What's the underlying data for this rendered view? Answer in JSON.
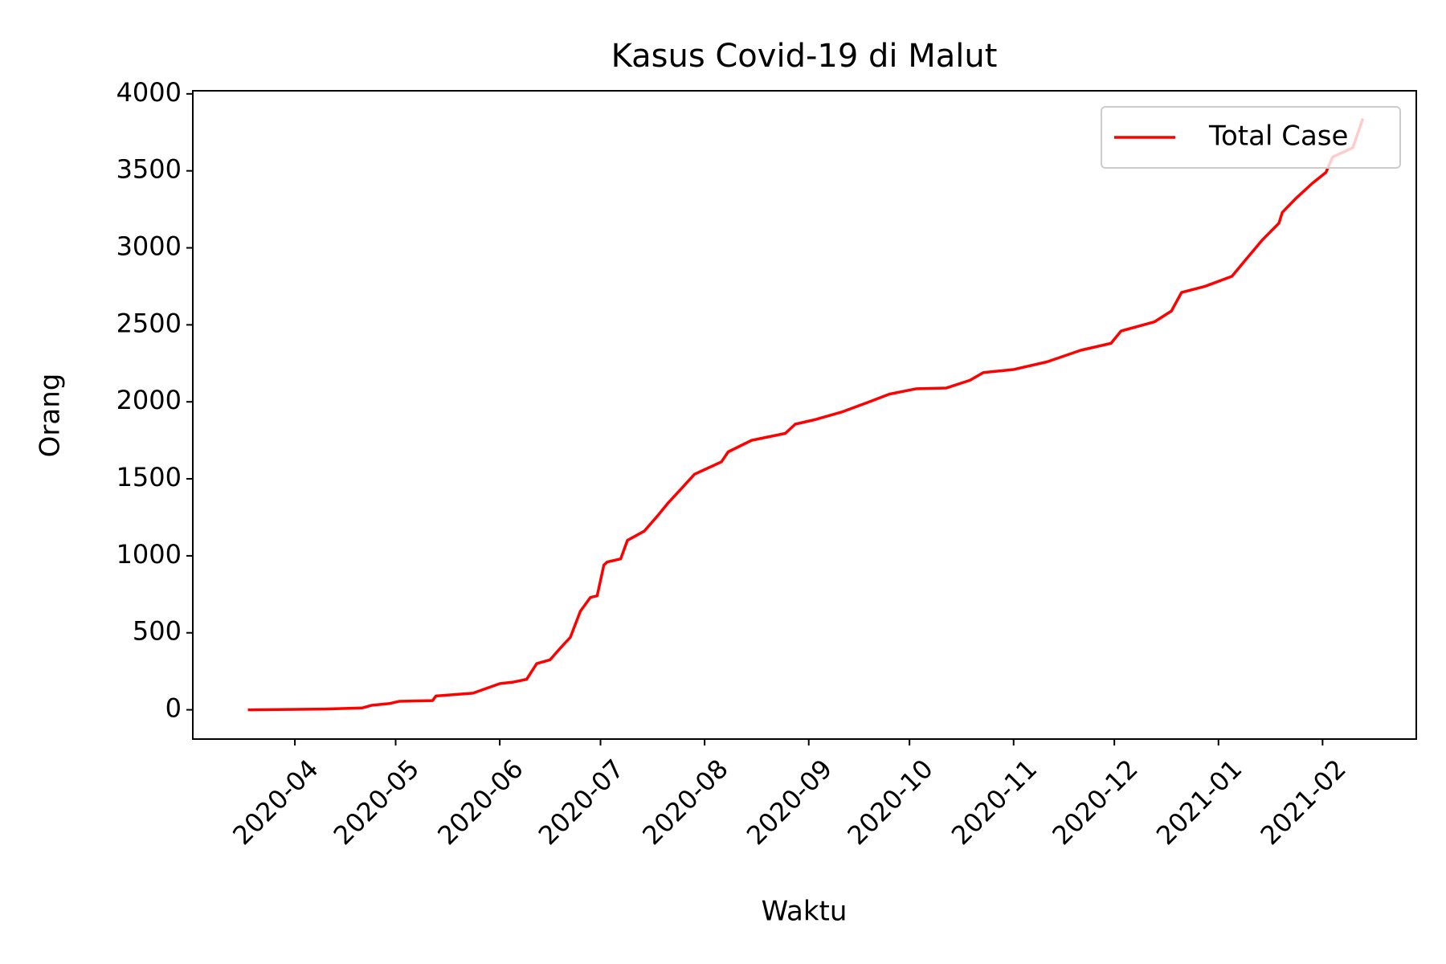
{
  "chart_data": {
    "type": "line",
    "title": "Kasus Covid-19 di Malut",
    "x_label": "Waktu",
    "y_label": "Orang",
    "x": [
      77,
      100,
      111,
      114,
      119,
      122,
      132,
      133,
      144,
      152,
      156,
      160,
      163,
      167,
      170,
      173,
      176,
      179,
      181,
      183,
      184,
      188,
      190,
      195,
      199,
      202,
      206,
      210,
      214,
      218,
      220,
      227,
      237,
      240,
      246,
      254,
      262,
      268,
      276,
      285,
      292,
      296,
      305,
      315,
      325,
      334,
      337,
      347,
      352,
      355,
      362,
      370,
      374,
      379,
      384,
      385,
      389,
      394,
      398,
      400,
      406,
      409
    ],
    "series": [
      {
        "name": "Total Case",
        "color": "#ff0000",
        "values": [
          0,
          5,
          12,
          30,
          40,
          55,
          60,
          90,
          108,
          170,
          180,
          198,
          300,
          325,
          400,
          470,
          640,
          730,
          740,
          940,
          960,
          980,
          1100,
          1160,
          1260,
          1340,
          1435,
          1530,
          1570,
          1610,
          1675,
          1750,
          1795,
          1855,
          1885,
          1935,
          2000,
          2050,
          2085,
          2090,
          2140,
          2190,
          2210,
          2260,
          2335,
          2380,
          2460,
          2520,
          2590,
          2710,
          2750,
          2815,
          2920,
          3050,
          3160,
          3230,
          3320,
          3420,
          3490,
          3590,
          3650,
          3840
        ]
      }
    ],
    "xlim": [
      60.6,
      424.9
    ],
    "xticks": [
      {
        "value": 91,
        "label": "2020-04"
      },
      {
        "value": 121,
        "label": "2020-05"
      },
      {
        "value": 152,
        "label": "2020-06"
      },
      {
        "value": 182,
        "label": "2020-07"
      },
      {
        "value": 213,
        "label": "2020-08"
      },
      {
        "value": 244,
        "label": "2020-09"
      },
      {
        "value": 274,
        "label": "2020-10"
      },
      {
        "value": 305,
        "label": "2020-11"
      },
      {
        "value": 335,
        "label": "2020-12"
      },
      {
        "value": 366,
        "label": "2021-01"
      },
      {
        "value": 397,
        "label": "2021-02"
      }
    ],
    "ylim": [
      -190,
      4020
    ],
    "yticks": [
      0,
      500,
      1000,
      1500,
      2000,
      2500,
      3000,
      3500,
      4000
    ],
    "legend": "upper right",
    "grid": false
  }
}
